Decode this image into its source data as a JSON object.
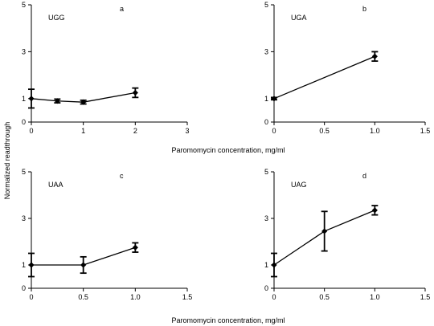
{
  "figure": {
    "ylabel": "Normalized readthrough",
    "xlabel_top": "Paromomycin concentration, mg/ml",
    "xlabel_bottom": "Paromomycin concentration, mg/ml"
  },
  "chart_data": [
    {
      "type": "line",
      "panel": "a",
      "codon": "UGG",
      "xlim": [
        0,
        3
      ],
      "ylim": [
        0,
        5
      ],
      "xticks": [
        "0",
        "1",
        "2",
        "3"
      ],
      "yticks": [
        "0",
        "1",
        "3",
        "5"
      ],
      "x": [
        0,
        0.5,
        1,
        2
      ],
      "y": [
        1.0,
        0.9,
        0.85,
        1.25
      ],
      "error": [
        0.4,
        0.08,
        0.08,
        0.2
      ]
    },
    {
      "type": "line",
      "panel": "b",
      "codon": "UGA",
      "xlim": [
        0,
        1.5
      ],
      "ylim": [
        0,
        5
      ],
      "xticks": [
        "0",
        "0.5",
        "1.0",
        "1.5"
      ],
      "yticks": [
        "0",
        "1",
        "3",
        "5"
      ],
      "x": [
        0,
        1
      ],
      "y": [
        1.0,
        2.8
      ],
      "error": [
        0.05,
        0.2
      ]
    },
    {
      "type": "line",
      "panel": "c",
      "codon": "UAA",
      "xlim": [
        0,
        1.5
      ],
      "ylim": [
        0,
        5
      ],
      "xticks": [
        "0",
        "0.5",
        "1.0",
        "1.5"
      ],
      "yticks": [
        "0",
        "1",
        "3",
        "5"
      ],
      "x": [
        0,
        0.5,
        1
      ],
      "y": [
        1.0,
        1.0,
        1.75
      ],
      "error": [
        0.5,
        0.35,
        0.2
      ]
    },
    {
      "type": "line",
      "panel": "d",
      "codon": "UAG",
      "xlim": [
        0,
        1.5
      ],
      "ylim": [
        0,
        5
      ],
      "xticks": [
        "0",
        "0.5",
        "1.0",
        "1.5"
      ],
      "yticks": [
        "0",
        "1",
        "3",
        "5"
      ],
      "x": [
        0,
        0.5,
        1
      ],
      "y": [
        1.0,
        2.45,
        3.35
      ],
      "error": [
        0.5,
        0.85,
        0.2
      ]
    }
  ]
}
